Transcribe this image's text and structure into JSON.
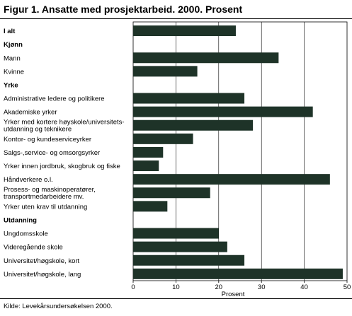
{
  "chart_data": {
    "type": "bar",
    "orientation": "horizontal",
    "title": "Figur 1. Ansatte med prosjektarbeid. 2000. Prosent",
    "xlabel": "Prosent",
    "ylabel": "",
    "xlim": [
      0,
      50
    ],
    "xticks": [
      "0",
      "10",
      "20",
      "30",
      "40",
      "50"
    ],
    "grid": true,
    "bar_color": "#1e3328",
    "rows": [
      {
        "label": "I alt",
        "bold": true,
        "value": 24
      },
      {
        "label": "Kjønn",
        "bold": true,
        "header": true
      },
      {
        "label": "Mann",
        "value": 34
      },
      {
        "label": "Kvinne",
        "value": 15
      },
      {
        "label": "Yrke",
        "bold": true,
        "header": true
      },
      {
        "label": "Administrative ledere og politikere",
        "value": 26
      },
      {
        "label": "Akademiske yrker",
        "value": 42
      },
      {
        "label": "Yrker med kortere høyskole/universitets-\nutdanning og teknikere",
        "value": 28
      },
      {
        "label": "Kontor- og kundeserviceyrker",
        "value": 14
      },
      {
        "label": "Salgs-,service- og omsorgsyrker",
        "value": 7
      },
      {
        "label": "Yrker innen jordbruk, skogbruk og fiske",
        "value": 6
      },
      {
        "label": "Håndverkere o.l.",
        "value": 46
      },
      {
        "label": "Prosess- og maskinoperatører,\ntransportmedarbeidere mv.",
        "value": 18
      },
      {
        "label": "Yrker uten krav til utdanning",
        "value": 8
      },
      {
        "label": "Utdanning",
        "bold": true,
        "header": true
      },
      {
        "label": "Ungdomsskole",
        "value": 20
      },
      {
        "label": "Videregående skole",
        "value": 22
      },
      {
        "label": "Universitet/høgskole, kort",
        "value": 26
      },
      {
        "label": "Universitet/høgskole, lang",
        "value": 49
      }
    ]
  },
  "source": "Kilde: Levekårsundersøkelsen 2000."
}
